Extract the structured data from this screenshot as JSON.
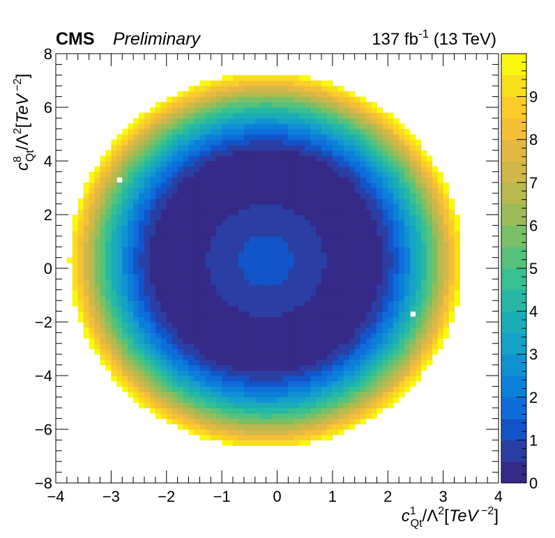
{
  "header": {
    "experiment": "CMS",
    "status": "Preliminary",
    "lumi_value": "137 fb",
    "lumi_exp": "-1",
    "energy": " (13 TeV)"
  },
  "chart_data": {
    "type": "heatmap",
    "title": "",
    "xlabel": "c_Qt^1/Λ^2[TeV^-2]",
    "ylabel": "c_Qt^8/Λ^2[TeV^-2]",
    "xlim": [
      -4,
      4
    ],
    "ylim": [
      -8,
      8
    ],
    "zlim": [
      0,
      10
    ],
    "x_ticks": [
      -4,
      -3,
      -2,
      -1,
      0,
      1,
      2,
      3,
      4
    ],
    "y_ticks": [
      -8,
      -6,
      -4,
      -2,
      0,
      2,
      4,
      6,
      8
    ],
    "x_tick_labels": [
      "−4",
      "−3",
      "−2",
      "−1",
      "0",
      "1",
      "2",
      "3",
      "4"
    ],
    "y_tick_labels": [
      "−8",
      "−6",
      "−4",
      "−2",
      "0",
      "2",
      "4",
      "6",
      "8"
    ],
    "z_ticks": [
      0,
      1,
      2,
      3,
      4,
      5,
      6,
      7,
      8,
      9
    ],
    "z_tick_labels": [
      "0",
      "1",
      "2",
      "3",
      "4",
      "5",
      "6",
      "7",
      "8",
      "9"
    ],
    "grid": false,
    "bins": {
      "nx": 80,
      "ny": 80
    },
    "palette": "Parula",
    "surface": {
      "description_of_values": "minimum near centre rising radially toward edge",
      "centre": [
        -0.2,
        0.3
      ],
      "local_bump_value": 1.3,
      "flat_minimum_value": 0.2,
      "edge_value": 10,
      "half_axes": [
        3.55,
        7.0
      ]
    },
    "empty_bins": [
      [
        -2.85,
        3.3
      ],
      [
        2.45,
        -1.65
      ]
    ]
  },
  "colors": {
    "palette": [
      "#352a87",
      "#2a3ea3",
      "#1255c8",
      "#0f6ddb",
      "#0c80d8",
      "#1092d2",
      "#16a1c8",
      "#1badb6",
      "#26b8a5",
      "#38bf92",
      "#57c27b",
      "#7abf66",
      "#9bbc58",
      "#b8b94f",
      "#d0b749",
      "#e4b943",
      "#f5bf37",
      "#fbcc2c",
      "#f8de1d",
      "#f9f90e"
    ]
  }
}
